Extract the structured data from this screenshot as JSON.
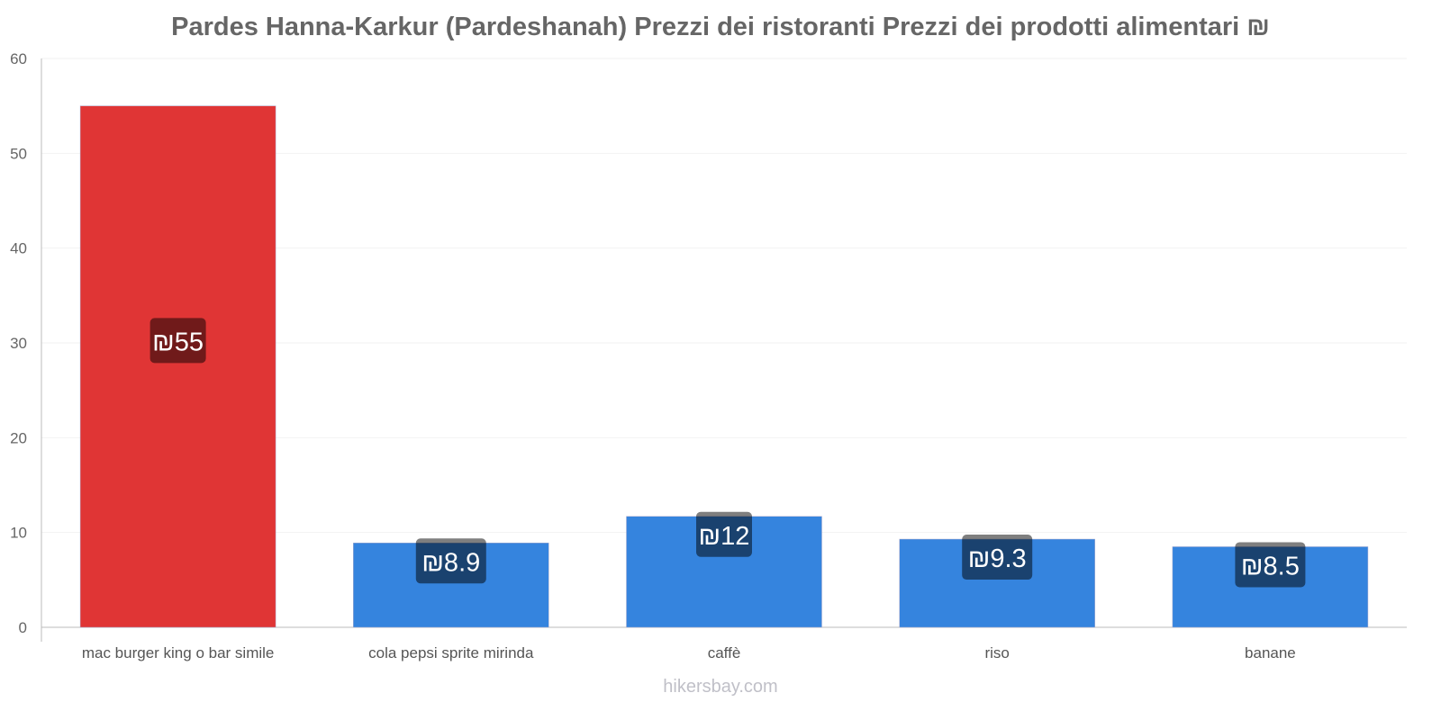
{
  "chart_data": {
    "type": "bar",
    "title": "Pardes Hanna-Karkur (Pardeshanah) Prezzi dei ristoranti Prezzi dei prodotti alimentari ₪",
    "categories": [
      "mac burger king o bar simile",
      "cola pepsi sprite mirinda",
      "caffè",
      "riso",
      "banane"
    ],
    "values": [
      55,
      8.9,
      11.7,
      9.3,
      8.5
    ],
    "value_labels": [
      "₪55",
      "₪8.9",
      "₪12",
      "₪9.3",
      "₪8.5"
    ],
    "colors": [
      "#e03535",
      "#3584de",
      "#3584de",
      "#3584de",
      "#3584de"
    ],
    "ylim": [
      0,
      60
    ],
    "yticks": [
      0,
      10,
      20,
      30,
      40,
      50,
      60
    ],
    "xlabel": "",
    "ylabel": "",
    "grid": true,
    "legend": "none"
  },
  "footer": "hikersbay.com"
}
